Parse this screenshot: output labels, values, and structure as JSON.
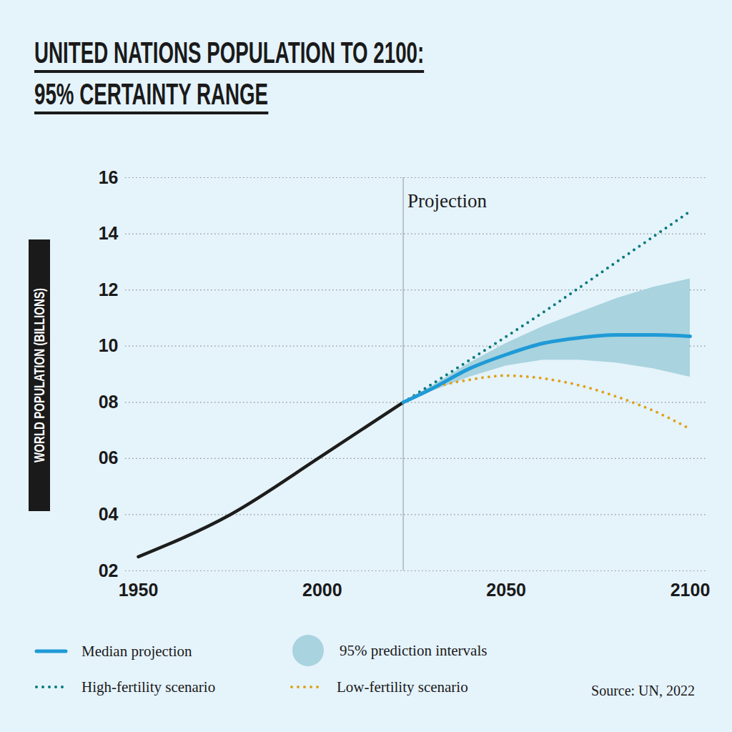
{
  "chart_data": {
    "type": "line",
    "title": [
      "UNITED NATIONS POPULATION TO 2100:",
      "95% CERTAINTY RANGE"
    ],
    "y_label": "WORLD POPULATION (BILLIONS)",
    "source": "Source: UN, 2022",
    "annotation": {
      "text": "Projection",
      "x": 2022
    },
    "xlim": [
      1950,
      2100
    ],
    "xticks": [
      1950,
      2000,
      2050,
      2100
    ],
    "ylim": [
      2,
      16
    ],
    "yticks": [
      {
        "value": 2,
        "label": "02"
      },
      {
        "value": 4,
        "label": "04"
      },
      {
        "value": 6,
        "label": "06"
      },
      {
        "value": 8,
        "label": "08"
      },
      10,
      12,
      14,
      16
    ],
    "grid": true,
    "series": [
      {
        "color": "#1d1d1b",
        "line_style": "solid",
        "x": [
          1950,
          1975,
          2000,
          2022
        ],
        "values": [
          2.5,
          4.0,
          6.1,
          8.0
        ]
      },
      {
        "name": "High-fertility scenario",
        "color": "#00797d",
        "line_style": "dotted",
        "x": [
          2022,
          2040,
          2060,
          2080,
          2100
        ],
        "values": [
          8.0,
          9.5,
          11.2,
          13.0,
          14.8
        ]
      },
      {
        "name": "Low-fertility scenario",
        "color": "#dea31a",
        "line_style": "dotted",
        "x": [
          2022,
          2030,
          2040,
          2050,
          2060,
          2070,
          2080,
          2090,
          2100
        ],
        "values": [
          8.0,
          8.5,
          8.8,
          8.95,
          8.85,
          8.6,
          8.2,
          7.7,
          7.05
        ]
      },
      {
        "name": "Median projection",
        "color": "#1f9ad6",
        "line_style": "solid",
        "x": [
          2022,
          2030,
          2040,
          2050,
          2060,
          2070,
          2080,
          2090,
          2100
        ],
        "values": [
          8.0,
          8.5,
          9.2,
          9.7,
          10.1,
          10.3,
          10.4,
          10.4,
          10.35
        ]
      }
    ],
    "interval": {
      "name": "95% prediction intervals",
      "color": "#a8d3df",
      "x": [
        2022,
        2030,
        2040,
        2050,
        2060,
        2070,
        2080,
        2090,
        2100
      ],
      "lower": [
        8.0,
        8.4,
        8.9,
        9.3,
        9.5,
        9.5,
        9.4,
        9.2,
        8.9
      ],
      "upper": [
        8.0,
        8.6,
        9.4,
        10.1,
        10.7,
        11.2,
        11.7,
        12.1,
        12.4
      ]
    }
  }
}
